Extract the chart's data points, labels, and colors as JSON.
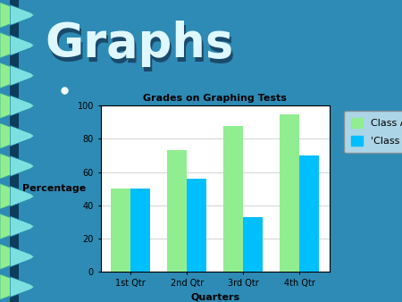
{
  "title": "Grades on Graphing Tests",
  "xlabel": "Quarters",
  "ylabel": "Percentage",
  "categories": [
    "1st Qtr",
    "2nd Qtr",
    "3rd Qtr",
    "4th Qtr"
  ],
  "class_a": [
    50,
    73,
    88,
    95
  ],
  "class_b": [
    50,
    56,
    33,
    70
  ],
  "color_a": "#90EE90",
  "color_b": "#00BFFF",
  "ylim": [
    0,
    100
  ],
  "yticks": [
    0,
    20,
    40,
    60,
    80,
    100
  ],
  "legend_a": "Class A",
  "legend_b": "'Class B",
  "bg_color": "#2e8bb5",
  "chart_bg": "#2e8bb5",
  "header_text": "Graphs",
  "header_color": "#dff8ff",
  "title_color": "black",
  "separator_color": "#1a5f85",
  "spiral_color1": "#7de0e0",
  "spiral_color2": "#90ee90"
}
